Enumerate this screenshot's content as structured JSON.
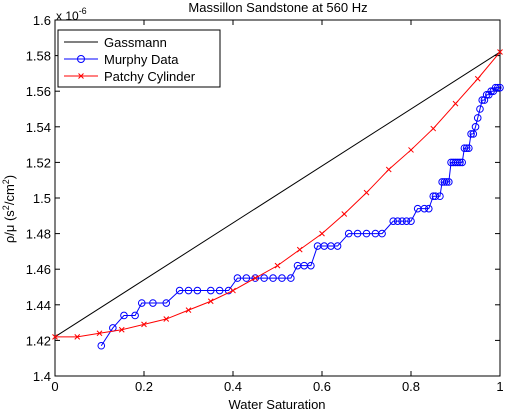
{
  "chart_data": {
    "type": "line",
    "title": "Massillon Sandstone at 560 Hz",
    "xlabel": "Water Saturation",
    "ylabel_main": "ρ/μ (s",
    "ylabel_sup1": "2",
    "ylabel_mid": "/cm",
    "ylabel_sup2": "2",
    "ylabel_end": ")",
    "y_exponent_base": "x 10",
    "y_exponent_power": "-6",
    "xlim": [
      0,
      1
    ],
    "ylim": [
      1.4,
      1.6
    ],
    "x_ticks": [
      "0",
      "0.2",
      "0.4",
      "0.6",
      "0.8",
      "1"
    ],
    "x_tick_values": [
      0,
      0.2,
      0.4,
      0.6,
      0.8,
      1.0
    ],
    "y_ticks": [
      "1.4",
      "1.42",
      "1.44",
      "1.46",
      "1.48",
      "1.5",
      "1.52",
      "1.54",
      "1.56",
      "1.58",
      "1.6"
    ],
    "y_tick_values": [
      1.4,
      1.42,
      1.44,
      1.46,
      1.48,
      1.5,
      1.52,
      1.54,
      1.56,
      1.58,
      1.6
    ],
    "grid": false,
    "legend_position": "top-left",
    "series": [
      {
        "name": "Gassmann",
        "color": "#000000",
        "marker": "none",
        "x": [
          0,
          1
        ],
        "y": [
          1.422,
          1.582
        ]
      },
      {
        "name": "Murphy Data",
        "color": "#0000ff",
        "marker": "circle",
        "x": [
          0.104,
          0.13,
          0.155,
          0.18,
          0.195,
          0.22,
          0.25,
          0.28,
          0.3,
          0.32,
          0.35,
          0.37,
          0.39,
          0.41,
          0.43,
          0.45,
          0.47,
          0.49,
          0.51,
          0.53,
          0.545,
          0.56,
          0.575,
          0.59,
          0.605,
          0.62,
          0.635,
          0.66,
          0.68,
          0.7,
          0.72,
          0.735,
          0.76,
          0.77,
          0.78,
          0.79,
          0.8,
          0.815,
          0.83,
          0.84,
          0.85,
          0.855,
          0.865,
          0.87,
          0.875,
          0.88,
          0.885,
          0.89,
          0.895,
          0.9,
          0.905,
          0.91,
          0.915,
          0.92,
          0.925,
          0.93,
          0.935,
          0.94,
          0.945,
          0.95,
          0.955,
          0.96,
          0.965,
          0.97,
          0.975,
          0.98,
          0.985,
          0.99,
          0.995,
          1.0
        ],
        "y": [
          1.417,
          1.427,
          1.434,
          1.434,
          1.441,
          1.441,
          1.441,
          1.448,
          1.448,
          1.448,
          1.448,
          1.448,
          1.448,
          1.455,
          1.455,
          1.455,
          1.455,
          1.455,
          1.455,
          1.455,
          1.462,
          1.462,
          1.462,
          1.473,
          1.473,
          1.473,
          1.473,
          1.48,
          1.48,
          1.48,
          1.48,
          1.48,
          1.487,
          1.487,
          1.487,
          1.487,
          1.487,
          1.494,
          1.494,
          1.494,
          1.501,
          1.501,
          1.501,
          1.509,
          1.509,
          1.509,
          1.509,
          1.52,
          1.52,
          1.52,
          1.52,
          1.52,
          1.52,
          1.528,
          1.528,
          1.528,
          1.536,
          1.536,
          1.54,
          1.545,
          1.55,
          1.555,
          1.555,
          1.558,
          1.558,
          1.56,
          1.56,
          1.562,
          1.562,
          1.562
        ]
      },
      {
        "name": "Patchy Cylinder",
        "color": "#ff0000",
        "marker": "x",
        "x": [
          0,
          0.05,
          0.1,
          0.15,
          0.2,
          0.25,
          0.3,
          0.35,
          0.4,
          0.45,
          0.5,
          0.55,
          0.6,
          0.65,
          0.7,
          0.75,
          0.8,
          0.85,
          0.9,
          0.95,
          1.0
        ],
        "y": [
          1.422,
          1.422,
          1.424,
          1.426,
          1.429,
          1.432,
          1.437,
          1.442,
          1.448,
          1.455,
          1.462,
          1.471,
          1.48,
          1.491,
          1.503,
          1.516,
          1.527,
          1.539,
          1.553,
          1.567,
          1.582
        ]
      }
    ]
  }
}
